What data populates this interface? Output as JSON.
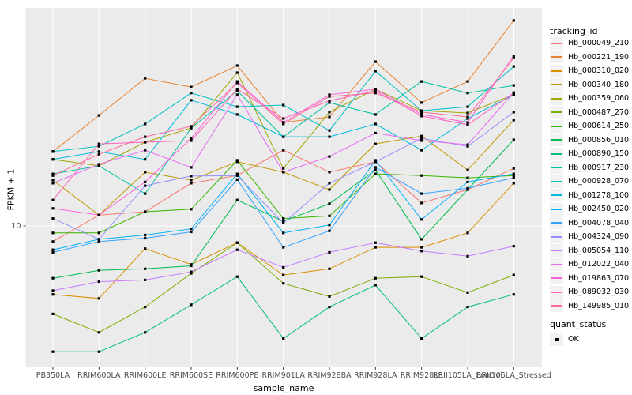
{
  "legend": {
    "tracking_title": "tracking_id",
    "quant_title": "quant_status",
    "quant_items": [
      {
        "label": "OK",
        "marker": "black-square"
      }
    ]
  },
  "colors": {
    "panel_background": "#EBEBEB",
    "gridline": "#FFFFFF",
    "tick_text": "#4D4D4D",
    "tick_mark": "#333333",
    "point": "#000000",
    "legend_key_background": "#F2F2F2"
  },
  "chart_data": {
    "type": "line",
    "title": "",
    "xlabel": "sample_name",
    "ylabel": "FPKM + 1",
    "y_scale": "log10",
    "y_ticks": [
      10
    ],
    "grid": "major-only",
    "legend_position": "right",
    "point_marker": "black-square",
    "categories": [
      "PB350LA",
      "RRIM600LA",
      "RRIM600LE",
      "RRIM600SE",
      "RRIM600PE",
      "RRIM901LA",
      "RRIM928BA",
      "RRIM928LA",
      "RRIM928LE",
      "RRII105LA_Control",
      "RRII105LA_Stressed"
    ],
    "series": [
      {
        "name": "Hb_000049_210",
        "color": "#F8766D",
        "values": [
          8.5,
          11.2,
          11.6,
          15.6,
          16.9,
          22.0,
          17.5,
          19.5,
          12.7,
          14.6,
          18.2
        ]
      },
      {
        "name": "Hb_000221_190",
        "color": "#EA8331",
        "values": [
          21.7,
          31.6,
          46.5,
          42.5,
          53.1,
          29.4,
          31.1,
          55.3,
          36.1,
          45.0,
          84.9
        ]
      },
      {
        "name": "Hb_000310_020",
        "color": "#D89000",
        "values": [
          4.9,
          4.7,
          7.9,
          6.7,
          8.4,
          6.0,
          6.4,
          8.0,
          8.0,
          9.3,
          15.6
        ]
      },
      {
        "name": "Hb_000340_180",
        "color": "#C09B00",
        "values": [
          16.1,
          11.2,
          17.5,
          16.1,
          19.5,
          17.5,
          14.6,
          23.5,
          25.5,
          17.9,
          30.1
        ]
      },
      {
        "name": "Hb_000359_060",
        "color": "#A3A500",
        "values": [
          20.0,
          18.7,
          23.9,
          27.7,
          49.3,
          18.2,
          32.7,
          41.5,
          33.2,
          32.4,
          39.2
        ]
      },
      {
        "name": "Hb_000487_270",
        "color": "#7CAE00",
        "values": [
          4.0,
          3.3,
          4.3,
          6.1,
          8.4,
          5.5,
          4.8,
          5.8,
          5.9,
          5.0,
          6.0
        ]
      },
      {
        "name": "Hb_000614_250",
        "color": "#39B600",
        "values": [
          9.3,
          9.3,
          11.6,
          11.9,
          19.8,
          10.8,
          11.1,
          17.2,
          16.9,
          16.5,
          16.9
        ]
      },
      {
        "name": "Hb_000856_010",
        "color": "#00BB4E",
        "values": [
          5.8,
          6.3,
          6.4,
          6.6,
          13.1,
          10.5,
          12.6,
          17.9,
          8.7,
          14.6,
          24.5
        ]
      },
      {
        "name": "Hb_000890_150",
        "color": "#00BF7D",
        "values": [
          2.7,
          2.7,
          3.3,
          4.4,
          5.9,
          3.1,
          4.3,
          5.4,
          3.1,
          4.3,
          4.9
        ]
      },
      {
        "name": "Hb_000917_230",
        "color": "#00C1A3",
        "values": [
          17.2,
          18.7,
          14.0,
          27.7,
          40.8,
          25.3,
          36.1,
          31.9,
          45.0,
          39.9,
          43.2
        ]
      },
      {
        "name": "Hb_000928_070",
        "color": "#00BFC4",
        "values": [
          21.7,
          22.9,
          28.9,
          39.9,
          34.6,
          35.2,
          27.0,
          50.1,
          33.2,
          34.6,
          52.6
        ]
      },
      {
        "name": "Hb_001278_100",
        "color": "#00BBDB",
        "values": [
          20.0,
          21.7,
          20.0,
          37.0,
          31.9,
          25.3,
          25.3,
          28.9,
          22.0,
          30.6,
          39.2
        ]
      },
      {
        "name": "Hb_002450_020",
        "color": "#00B0F6",
        "values": [
          7.8,
          8.7,
          9.1,
          9.7,
          17.2,
          9.3,
          10.1,
          19.8,
          10.7,
          15.8,
          17.2
        ]
      },
      {
        "name": "Hb_004078_040",
        "color": "#35A2FF",
        "values": [
          7.6,
          8.5,
          8.8,
          9.4,
          16.2,
          8.0,
          9.5,
          18.4,
          14.0,
          14.8,
          16.5
        ]
      },
      {
        "name": "Hb_004324_090",
        "color": "#9590FF",
        "values": [
          10.8,
          8.7,
          15.2,
          16.8,
          16.9,
          10.3,
          15.6,
          19.5,
          24.9,
          22.9,
          32.7
        ]
      },
      {
        "name": "Hb_005054_110",
        "color": "#C77CFF",
        "values": [
          5.1,
          5.6,
          5.7,
          6.2,
          7.8,
          6.5,
          7.6,
          8.4,
          7.7,
          7.3,
          8.1
        ]
      },
      {
        "name": "Hb_012022_040",
        "color": "#E76BF3",
        "values": [
          15.6,
          19.0,
          22.0,
          18.4,
          39.2,
          17.5,
          20.6,
          26.3,
          24.3,
          23.3,
          40.1
        ]
      },
      {
        "name": "Hb_019863_070",
        "color": "#FA62DB",
        "values": [
          12.0,
          11.2,
          15.8,
          24.9,
          45.0,
          29.4,
          39.2,
          41.5,
          31.9,
          29.4,
          58.8
        ]
      },
      {
        "name": "Hb_089032_030",
        "color": "#FF62BC",
        "values": [
          13.1,
          23.5,
          23.9,
          24.3,
          41.5,
          30.6,
          36.8,
          40.8,
          31.4,
          28.7,
          39.9
        ]
      },
      {
        "name": "Hb_149985_010",
        "color": "#FF6A98",
        "values": [
          16.9,
          21.1,
          25.3,
          28.2,
          44.3,
          28.9,
          38.5,
          39.9,
          32.7,
          31.1,
          57.5
        ]
      }
    ]
  }
}
